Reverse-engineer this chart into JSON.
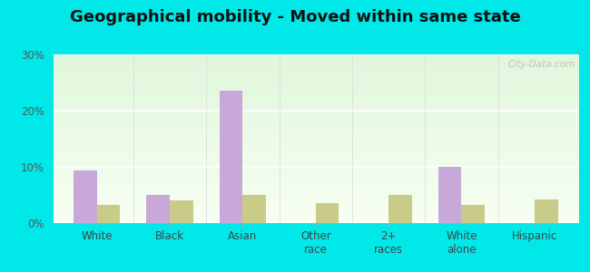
{
  "title": "Geographical mobility - Moved within same state",
  "categories": [
    "White",
    "Black",
    "Asian",
    "Other\nrace",
    "2+\nraces",
    "White\nalone",
    "Hispanic"
  ],
  "port_royal_values": [
    9.3,
    5.0,
    23.5,
    0.0,
    0.0,
    10.0,
    0.0
  ],
  "south_carolina_values": [
    3.2,
    4.0,
    5.0,
    3.5,
    5.0,
    3.2,
    4.2
  ],
  "port_royal_color": "#c8a8d8",
  "south_carolina_color": "#c8cc88",
  "background_color": "#00e8e8",
  "ylim": [
    0,
    30
  ],
  "yticks": [
    0,
    10,
    20,
    30
  ],
  "ytick_labels": [
    "0%",
    "10%",
    "20%",
    "30%"
  ],
  "title_fontsize": 13,
  "bar_width": 0.32,
  "watermark": "City-Data.com"
}
